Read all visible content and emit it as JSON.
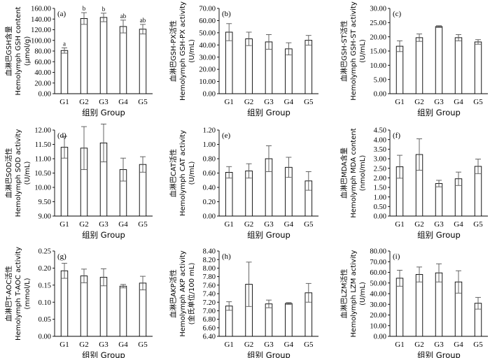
{
  "chart_data": [
    {
      "type": "bar",
      "panel": "(a)",
      "categories": [
        "G1",
        "G2",
        "G3",
        "G4",
        "G5"
      ],
      "values": [
        81,
        141,
        143,
        126,
        121
      ],
      "errors": [
        5,
        11,
        8,
        12,
        9
      ],
      "sig_labels": [
        "a",
        "b",
        "b",
        "ab",
        "ab"
      ],
      "ylim": [
        0,
        160
      ],
      "yticks": [
        0,
        20,
        40,
        60,
        80,
        100,
        120,
        140,
        160
      ],
      "decimals": 2,
      "ylabel": [
        "血淋巴GSH含量",
        "Hemolymph GSH content",
        "(μmol/g)"
      ],
      "xlabel": "组别 Group"
    },
    {
      "type": "bar",
      "panel": "(b)",
      "categories": [
        "G1",
        "G2",
        "G3",
        "G4",
        "G5"
      ],
      "values": [
        50.5,
        45.0,
        42.5,
        36.8,
        43.8
      ],
      "errors": [
        7.0,
        5.5,
        6.0,
        5.0,
        4.0
      ],
      "ylim": [
        0,
        70
      ],
      "yticks": [
        0,
        10,
        20,
        30,
        40,
        50,
        60,
        70
      ],
      "decimals": 2,
      "ylabel": [
        "血淋巴GSH-PX活性",
        "Hemolymph GSH-PX activity",
        "(U/mL)"
      ],
      "xlabel": "组别 Group"
    },
    {
      "type": "bar",
      "panel": "(c)",
      "categories": [
        "G1",
        "G2",
        "G3",
        "G4",
        "G5"
      ],
      "values": [
        16.7,
        19.7,
        23.6,
        19.7,
        18.2
      ],
      "errors": [
        1.9,
        1.3,
        0.3,
        1.1,
        0.8
      ],
      "ylim": [
        0,
        30
      ],
      "yticks": [
        0,
        5,
        10,
        15,
        20,
        25,
        30
      ],
      "decimals": 2,
      "ylabel": [
        "血淋巴GSH-ST活性",
        "Hemolymph GSH-ST activity",
        "(U/mL)"
      ],
      "xlabel": "组别 Group"
    },
    {
      "type": "bar",
      "panel": "(d)",
      "categories": [
        "G1",
        "G2",
        "G3",
        "G4",
        "G5"
      ],
      "values": [
        11.4,
        11.37,
        11.55,
        10.62,
        10.8
      ],
      "errors": [
        0.38,
        0.75,
        0.66,
        0.4,
        0.27
      ],
      "ylim": [
        9,
        12
      ],
      "yticks": [
        9.0,
        9.5,
        10.0,
        10.5,
        11.0,
        11.5,
        12.0
      ],
      "decimals": 2,
      "ylabel": [
        "血淋巴SOD活性",
        "Hemolymph SOD activity",
        "(U/mL)"
      ],
      "xlabel": "组别 Group"
    },
    {
      "type": "bar",
      "panel": "(e)",
      "categories": [
        "G1",
        "G2",
        "G3",
        "G4",
        "G5"
      ],
      "values": [
        0.61,
        0.63,
        0.8,
        0.68,
        0.49
      ],
      "errors": [
        0.08,
        0.1,
        0.18,
        0.14,
        0.13
      ],
      "ylim": [
        0,
        1.2
      ],
      "yticks": [
        0,
        0.2,
        0.4,
        0.6,
        0.8,
        1.0,
        1.2
      ],
      "decimals": 2,
      "ylabel": [
        "血淋巴CAT活性",
        "Hemolymph CAT activity",
        "(U/mL)"
      ],
      "xlabel": "组别 Group"
    },
    {
      "type": "bar",
      "panel": "(f)",
      "categories": [
        "G1",
        "G2",
        "G3",
        "G4",
        "G5"
      ],
      "values": [
        2.58,
        3.22,
        1.7,
        1.95,
        2.6
      ],
      "errors": [
        0.6,
        0.82,
        0.17,
        0.35,
        0.38
      ],
      "ylim": [
        0,
        4.5
      ],
      "yticks": [
        0,
        0.5,
        1.0,
        1.5,
        2.0,
        2.5,
        3.0,
        3.5,
        4.0,
        4.5
      ],
      "decimals": 2,
      "ylabel": [
        "血淋巴MDA含量",
        "Hemolymph MDA content",
        "(nmol/mL)"
      ],
      "xlabel": "组别 Group"
    },
    {
      "type": "bar",
      "panel": "(g)",
      "categories": [
        "G1",
        "G2",
        "G3",
        "G4",
        "G5"
      ],
      "values": [
        0.192,
        0.177,
        0.173,
        0.147,
        0.156
      ],
      "errors": [
        0.022,
        0.02,
        0.025,
        0.005,
        0.02
      ],
      "ylim": [
        0,
        0.25
      ],
      "yticks": [
        0,
        0.05,
        0.1,
        0.15,
        0.2,
        0.25
      ],
      "decimals": 2,
      "ylabel": [
        "血淋巴T-AOC活性",
        "Hemolymph T-AOC activity",
        "(mmol/L)"
      ],
      "xlabel": "组别 Group"
    },
    {
      "type": "bar",
      "panel": "(h)",
      "categories": [
        "G1",
        "G2",
        "G3",
        "G4",
        "G5"
      ],
      "values": [
        7.11,
        7.62,
        7.16,
        7.17,
        7.42
      ],
      "errors": [
        0.1,
        0.52,
        0.09,
        0.02,
        0.22
      ],
      "ylim": [
        6.4,
        8.4
      ],
      "yticks": [
        6.4,
        6.6,
        6.8,
        7.0,
        7.2,
        7.4,
        7.6,
        7.8,
        8.0,
        8.2,
        8.4
      ],
      "decimals": 2,
      "ylabel": [
        "血淋巴AKP活性",
        "Hemolymph AKP activity",
        "(金氏单位/100 mL)"
      ],
      "xlabel": "组别 Group"
    },
    {
      "type": "bar",
      "panel": "(i)",
      "categories": [
        "G1",
        "G2",
        "G3",
        "G4",
        "G5"
      ],
      "values": [
        54.5,
        58.0,
        59.5,
        51.0,
        31.0
      ],
      "errors": [
        7.5,
        7.0,
        8.5,
        10.5,
        5.5
      ],
      "ylim": [
        0,
        80
      ],
      "yticks": [
        0,
        10,
        20,
        30,
        40,
        50,
        60,
        70,
        80
      ],
      "decimals": 2,
      "ylabel": [
        "血淋巴LZM活性",
        "Hemolymph LZM activity",
        "(U/mL)"
      ],
      "xlabel": "组别 Group"
    }
  ]
}
